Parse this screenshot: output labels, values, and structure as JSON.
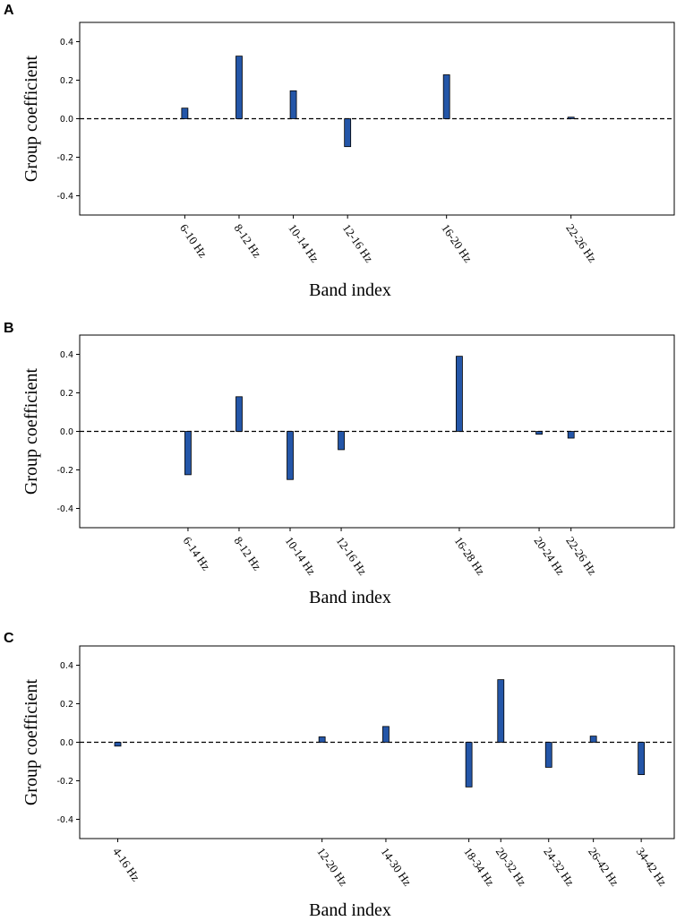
{
  "chart_data": [
    {
      "type": "bar",
      "panel": "A",
      "title": "",
      "xlabel": "Band index",
      "ylabel": "Group coefficient",
      "ylim": [
        -0.5,
        0.5
      ],
      "yticks": [
        "0.4",
        "0.2",
        "0.0",
        "-0.2",
        "-0.4"
      ],
      "ytick_values": [
        0.4,
        0.2,
        0.0,
        -0.2,
        -0.4
      ],
      "bar_color": "#2456a8",
      "xlim": [
        0,
        17
      ],
      "x": [
        2.9,
        4.6,
        6.3,
        8.0,
        11.1,
        15.0
      ],
      "categories": [
        "6-10 Hz",
        "8-12 Hz",
        "10-14 Hz",
        "12-16 Hz",
        "16-20 Hz",
        "22-26 Hz"
      ],
      "values": [
        0.055,
        0.325,
        0.145,
        -0.145,
        0.228,
        0.008
      ],
      "zero_line": "dashed"
    },
    {
      "type": "bar",
      "panel": "B",
      "title": "",
      "xlabel": "Band index",
      "ylabel": "Group coefficient",
      "ylim": [
        -0.5,
        0.5
      ],
      "yticks": [
        "0.4",
        "0.2",
        "0.0",
        "-0.2",
        "-0.4"
      ],
      "ytick_values": [
        0.4,
        0.2,
        0.0,
        -0.2,
        -0.4
      ],
      "bar_color": "#2456a8",
      "xlim": [
        0,
        17
      ],
      "x": [
        3.0,
        4.6,
        6.2,
        7.8,
        11.5,
        14.0,
        15.0
      ],
      "categories": [
        "6-14 Hz",
        "8-12 Hz",
        "10-14 Hz",
        "12-16 Hz",
        "16-28 Hz",
        "20-24 Hz",
        "22-26 Hz"
      ],
      "values": [
        -0.225,
        0.18,
        -0.25,
        -0.095,
        0.39,
        -0.015,
        -0.035
      ],
      "zero_line": "dashed"
    },
    {
      "type": "bar",
      "panel": "C",
      "title": "",
      "xlabel": "Band index",
      "ylabel": "Group coefficient",
      "ylim": [
        -0.5,
        0.5
      ],
      "yticks": [
        "0.4",
        "0.2",
        "0.0",
        "-0.2",
        "-0.4"
      ],
      "ytick_values": [
        0.4,
        0.2,
        0.0,
        -0.2,
        -0.4
      ],
      "bar_color": "#2456a8",
      "xlim": [
        0,
        17
      ],
      "x": [
        0.8,
        7.2,
        9.2,
        11.8,
        12.8,
        14.3,
        15.7,
        17.2
      ],
      "categories": [
        "4-16 Hz",
        "12-20 Hz",
        "14-30 Hz",
        "18-34 Hz",
        "20-32 Hz",
        "24-32 Hz",
        "26-42 Hz",
        "34-42 Hz"
      ],
      "values": [
        -0.02,
        0.028,
        0.082,
        -0.232,
        0.325,
        -0.13,
        0.032,
        -0.168
      ],
      "zero_line": "dashed"
    }
  ]
}
